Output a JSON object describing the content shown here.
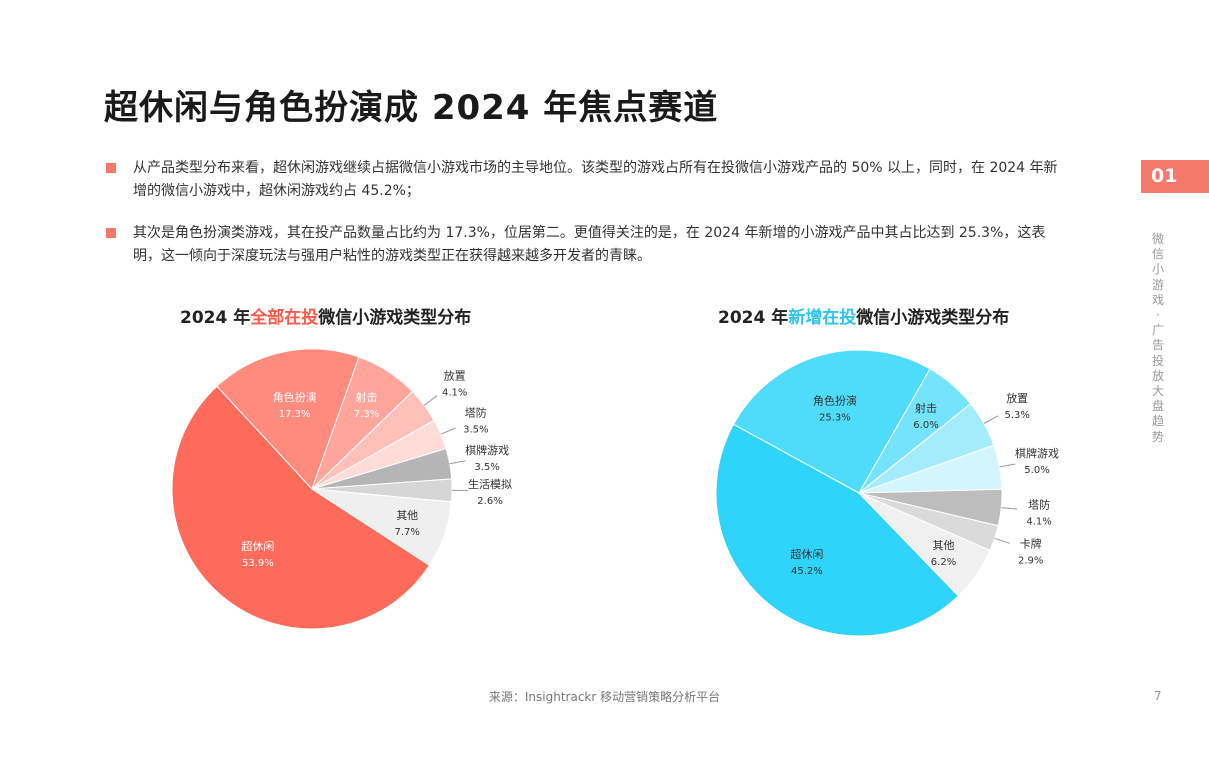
{
  "page": {
    "title": "超休闲与角色扮演成 2024 年焦点赛道",
    "section_number": "01",
    "side_label": "微信小游戏 · 广告投放大盘趋势",
    "page_number": "7",
    "source": "来源：Insightrackr 移动营销策略分析平台"
  },
  "bullets": [
    "从产品类型分布来看，超休闲游戏继续占据微信小游戏市场的主导地位。该类型的游戏占所有在投微信小游戏产品的 50% 以上，同时，在 2024 年新增的微信小游戏中，超休闲游戏约占 45.2%；",
    "其次是角色扮演类游戏，其在投产品数量占比约为 17.3%，位居第二。更值得关注的是，在 2024 年新增的小游戏产品中其占比达到 25.3%，这表明，这一倾向于深度玩法与强用户粘性的游戏类型正在获得越来越多开发者的青睐。"
  ],
  "chart_titles": [
    {
      "pre": "2024 年",
      "highlight": "全部在投",
      "post": "微信小游戏类型分布"
    },
    {
      "pre": "2024 年",
      "highlight": "新增在投",
      "post": "微信小游戏类型分布"
    }
  ],
  "colors": {
    "accent": "#f4796a",
    "red_highlight": "#ff5a4a",
    "blue_highlight": "#2ec6f0"
  },
  "chart_data": [
    {
      "type": "pie",
      "title": "2024 年全部在投微信小游戏类型分布",
      "slices": [
        {
          "label": "超休闲",
          "value": 53.9,
          "display": "53.9%",
          "color": "#ff6b5b",
          "label_pos": "inside"
        },
        {
          "label": "角色扮演",
          "value": 17.3,
          "display": "17.3%",
          "color": "#ff8a7e",
          "label_pos": "inside"
        },
        {
          "label": "射击",
          "value": 7.3,
          "display": "7.3%",
          "color": "#ffa59c",
          "label_pos": "inside"
        },
        {
          "label": "放置",
          "value": 4.1,
          "display": "4.1%",
          "color": "#ffc0ba",
          "label_pos": "outside"
        },
        {
          "label": "塔防",
          "value": 3.5,
          "display": "3.5%",
          "color": "#ffdcd8",
          "label_pos": "outside"
        },
        {
          "label": "棋牌游戏",
          "value": 3.5,
          "display": "3.5%",
          "color": "#b5b5b5",
          "label_pos": "outside"
        },
        {
          "label": "生活模拟",
          "value": 2.6,
          "display": "2.6%",
          "color": "#d6d6d6",
          "label_pos": "outside"
        },
        {
          "label": "其他",
          "value": 7.7,
          "display": "7.7%",
          "color": "#efefef",
          "label_pos": "inside"
        }
      ]
    },
    {
      "type": "pie",
      "title": "2024 年新增在投微信小游戏类型分布",
      "slices": [
        {
          "label": "超休闲",
          "value": 45.2,
          "display": "45.2%",
          "color": "#2fd4fb",
          "label_pos": "inside"
        },
        {
          "label": "角色扮演",
          "value": 25.3,
          "display": "25.3%",
          "color": "#4fdcfb",
          "label_pos": "inside"
        },
        {
          "label": "射击",
          "value": 6.0,
          "display": "6.0%",
          "color": "#74e3fb",
          "label_pos": "inside"
        },
        {
          "label": "放置",
          "value": 5.3,
          "display": "5.3%",
          "color": "#a4ecfc",
          "label_pos": "outside"
        },
        {
          "label": "棋牌游戏",
          "value": 5.0,
          "display": "5.0%",
          "color": "#d3f6fe",
          "label_pos": "outside"
        },
        {
          "label": "塔防",
          "value": 4.1,
          "display": "4.1%",
          "color": "#bdbdbd",
          "label_pos": "outside"
        },
        {
          "label": "卡牌",
          "value": 2.9,
          "display": "2.9%",
          "color": "#dadada",
          "label_pos": "outside"
        },
        {
          "label": "其他",
          "value": 6.2,
          "display": "6.2%",
          "color": "#f0f0f0",
          "label_pos": "inside"
        }
      ]
    }
  ]
}
